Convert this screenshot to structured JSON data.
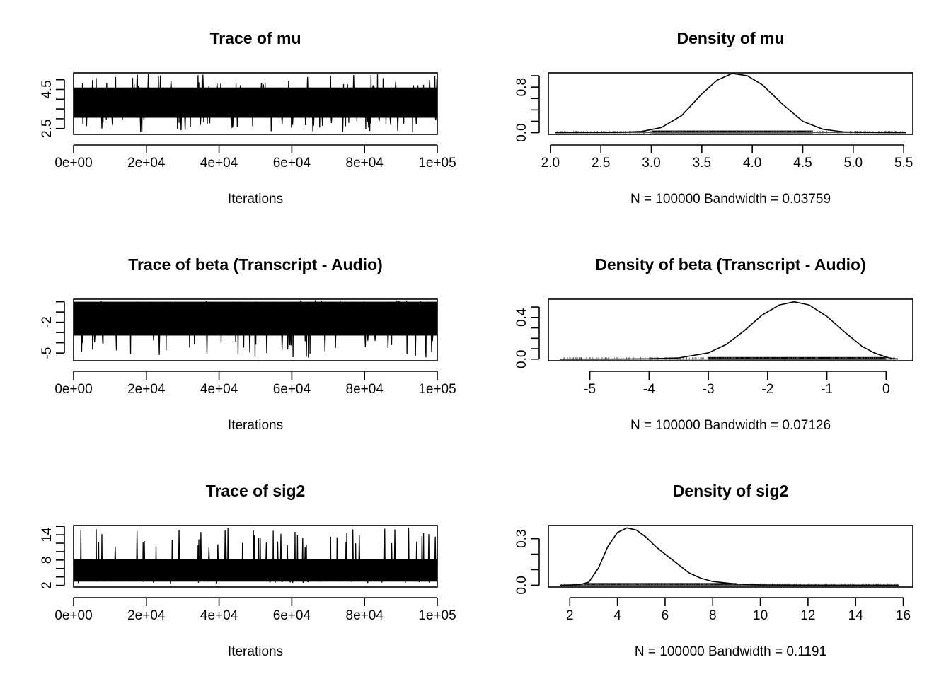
{
  "chart_data": [
    {
      "type": "line",
      "role": "trace",
      "title": "Trace of mu",
      "xlabel": "Iterations",
      "xlim": [
        0,
        100000
      ],
      "ylim": [
        2.2,
        5.35
      ],
      "xticks": [
        0,
        20000,
        40000,
        60000,
        80000,
        100000
      ],
      "xtick_labels": [
        "0e+00",
        "2e+04",
        "4e+04",
        "6e+04",
        "8e+04",
        "1e+05"
      ],
      "yticks": [
        2.5,
        3.0,
        3.5,
        4.0,
        4.5,
        5.0
      ],
      "ytick_labels": [
        "2.5",
        "",
        "",
        "",
        "4.5",
        ""
      ],
      "band": {
        "mean": 3.8,
        "low": 3.05,
        "high": 4.6,
        "min": 2.3,
        "max": 5.3
      }
    },
    {
      "type": "line",
      "role": "density",
      "title": "Density of mu",
      "xlabel": "N = 100000   Bandwidth = 0.03759",
      "xlim": [
        1.98,
        5.59
      ],
      "ylim": [
        -0.03,
        1.05
      ],
      "xticks": [
        2.0,
        2.5,
        3.0,
        3.5,
        4.0,
        4.5,
        5.0,
        5.5
      ],
      "xtick_labels": [
        "2.0",
        "2.5",
        "3.0",
        "3.5",
        "4.0",
        "4.5",
        "5.0",
        "5.5"
      ],
      "yticks": [
        0.0,
        0.2,
        0.4,
        0.6,
        0.8,
        1.0
      ],
      "ytick_labels": [
        "0.0",
        "",
        "",
        "",
        "0.8",
        ""
      ],
      "series": [
        {
          "x": [
            2.05,
            2.6,
            2.9,
            3.1,
            3.3,
            3.5,
            3.65,
            3.8,
            3.95,
            4.1,
            4.3,
            4.5,
            4.7,
            4.9,
            5.1,
            5.3,
            5.52
          ],
          "y": [
            0.0,
            0.003,
            0.02,
            0.09,
            0.3,
            0.68,
            0.92,
            1.04,
            1.0,
            0.84,
            0.5,
            0.2,
            0.06,
            0.015,
            0.004,
            0.001,
            0.0
          ]
        }
      ],
      "rug": {
        "min": 2.05,
        "max": 5.52,
        "dense_low": 3.0,
        "dense_high": 4.6
      }
    },
    {
      "type": "line",
      "role": "trace",
      "title": "Trace of beta (Transcript - Audio)",
      "xlabel": "Iterations",
      "xlim": [
        0,
        100000
      ],
      "ylim": [
        -5.75,
        0.25
      ],
      "xticks": [
        0,
        20000,
        40000,
        60000,
        80000,
        100000
      ],
      "xtick_labels": [
        "0e+00",
        "2e+04",
        "4e+04",
        "6e+04",
        "8e+04",
        "1e+05"
      ],
      "yticks": [
        -5,
        -4,
        -3,
        -2,
        -1,
        0
      ],
      "ytick_labels": [
        "-5",
        "",
        "",
        "-2",
        "",
        ""
      ],
      "band": {
        "mean": -1.6,
        "low": -3.3,
        "high": 0.0,
        "min": -5.5,
        "max": 0.15
      }
    },
    {
      "type": "line",
      "role": "density",
      "title": "Density of beta (Transcript - Audio)",
      "xlabel": "N = 100000   Bandwidth = 0.07126",
      "xlim": [
        -5.7,
        0.45
      ],
      "ylim": [
        -0.015,
        0.575
      ],
      "xticks": [
        -5,
        -4,
        -3,
        -2,
        -1,
        0
      ],
      "xtick_labels": [
        "-5",
        "-4",
        "-3",
        "-2",
        "-1",
        "0"
      ],
      "yticks": [
        0.0,
        0.1,
        0.2,
        0.3,
        0.4,
        0.5
      ],
      "ytick_labels": [
        "0.0",
        "",
        "",
        "",
        "0.4",
        ""
      ],
      "series": [
        {
          "x": [
            -5.5,
            -4.5,
            -4.0,
            -3.5,
            -3.0,
            -2.7,
            -2.4,
            -2.1,
            -1.8,
            -1.55,
            -1.3,
            -1.0,
            -0.7,
            -0.4,
            -0.2,
            0.0,
            0.1,
            0.2
          ],
          "y": [
            0.0,
            0.001,
            0.003,
            0.012,
            0.06,
            0.14,
            0.27,
            0.42,
            0.52,
            0.55,
            0.52,
            0.41,
            0.26,
            0.12,
            0.06,
            0.02,
            0.006,
            0.002
          ]
        }
      ],
      "rug": {
        "min": -5.45,
        "max": 0.2,
        "dense_low": -3.0,
        "dense_high": 0.0
      }
    },
    {
      "type": "line",
      "role": "trace",
      "title": "Trace of sig2",
      "xlabel": "Iterations",
      "xlim": [
        0,
        100000
      ],
      "ylim": [
        1.6,
        16.2
      ],
      "xticks": [
        0,
        20000,
        40000,
        60000,
        80000,
        100000
      ],
      "xtick_labels": [
        "0e+00",
        "2e+04",
        "4e+04",
        "6e+04",
        "8e+04",
        "1e+05"
      ],
      "yticks": [
        2,
        4,
        6,
        8,
        10,
        12,
        14,
        16
      ],
      "ytick_labels": [
        "2",
        "",
        "",
        "8",
        "",
        "",
        "14",
        ""
      ],
      "band": {
        "mean": 5.0,
        "low": 2.9,
        "high": 8.2,
        "min": 2.4,
        "max": 15.7
      }
    },
    {
      "type": "line",
      "role": "density",
      "title": "Density of sig2",
      "xlabel": "N = 100000   Bandwidth = 0.1191",
      "xlim": [
        1.1,
        16.4
      ],
      "ylim": [
        -0.012,
        0.385
      ],
      "xticks": [
        2,
        4,
        6,
        8,
        10,
        12,
        14,
        16
      ],
      "xtick_labels": [
        "2",
        "4",
        "6",
        "8",
        "10",
        "12",
        "14",
        "16"
      ],
      "yticks": [
        0.0,
        0.1,
        0.2,
        0.3
      ],
      "ytick_labels": [
        "0.0",
        "",
        "",
        "0.3"
      ],
      "series": [
        {
          "x": [
            1.6,
            2.4,
            2.8,
            3.2,
            3.6,
            4.0,
            4.4,
            4.8,
            5.2,
            5.6,
            6.0,
            6.5,
            7.0,
            7.5,
            8.0,
            9.0,
            10.0,
            12.0,
            14.0,
            15.8
          ],
          "y": [
            0.0,
            0.003,
            0.02,
            0.11,
            0.25,
            0.34,
            0.37,
            0.355,
            0.31,
            0.25,
            0.2,
            0.14,
            0.08,
            0.045,
            0.024,
            0.007,
            0.002,
            0.0005,
            0.0001,
            0.0
          ]
        }
      ],
      "rug": {
        "min": 1.6,
        "max": 15.8,
        "dense_low": 2.6,
        "dense_high": 9.0
      }
    }
  ]
}
